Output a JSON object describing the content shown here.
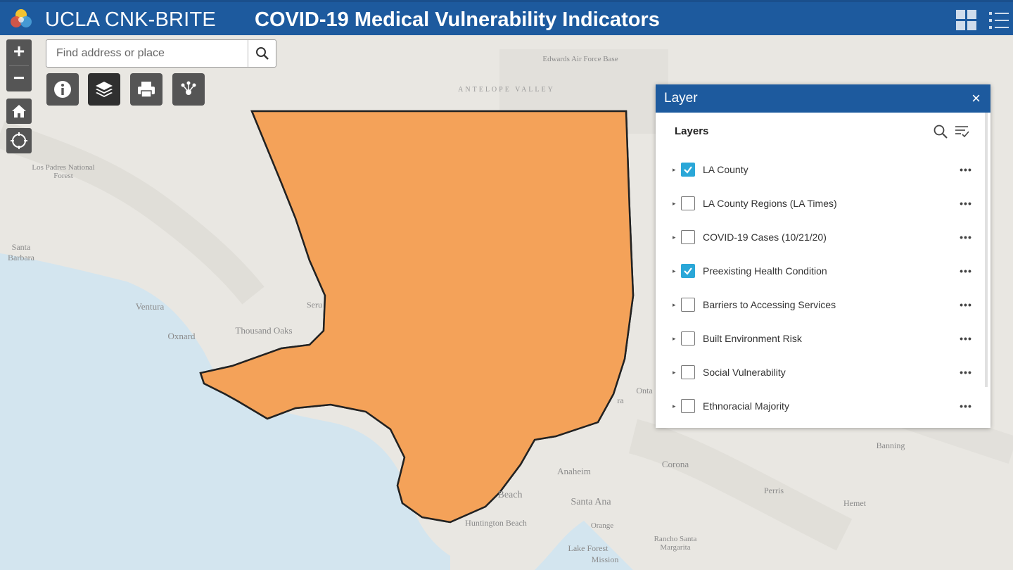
{
  "header": {
    "title": "UCLA CNK-BRITE",
    "subtitle": "COVID-19 Medical Vulnerability Indicators",
    "icons": [
      "logo-icon",
      "grid-icon",
      "list-icon"
    ]
  },
  "search": {
    "placeholder": "Find address or place"
  },
  "controls": {
    "zoom_in": "+",
    "zoom_out": "−",
    "tools": [
      "info-icon",
      "layers-icon",
      "print-icon",
      "share-icon"
    ]
  },
  "map_labels": {
    "edwards": "Edwards Air Force Base",
    "antelope": "ANTELOPE VALLEY",
    "los_padres": "Los Padres National Forest",
    "santa_barbara": "Santa Barbara",
    "ventura": "Ventura",
    "oxnard": "Oxnard",
    "thousand_oaks": "Thousand Oaks",
    "anaheim": "Anaheim",
    "santa_ana": "Santa Ana",
    "huntington": "Huntington Beach",
    "corona": "Corona",
    "perris": "Perris",
    "hemet": "Hemet",
    "banning": "Banning",
    "lake_forest": "Lake Forest",
    "mission": "Mission",
    "rancho": "Rancho Santa Margarita",
    "beach": "Beach",
    "orange": "Orange",
    "seru": "Seru",
    "onta": "Onta",
    "ra": "ra"
  },
  "panel": {
    "title": "Layer",
    "close": "×",
    "section_title": "Layers",
    "layers": [
      {
        "name": "LA County",
        "checked": true
      },
      {
        "name": "LA County Regions (LA Times)",
        "checked": false
      },
      {
        "name": "COVID-19 Cases (10/21/20)",
        "checked": false
      },
      {
        "name": "Preexisting Health Condition",
        "checked": true
      },
      {
        "name": "Barriers to Accessing Services",
        "checked": false
      },
      {
        "name": "Built Environment Risk",
        "checked": false
      },
      {
        "name": "Social Vulnerability",
        "checked": false
      },
      {
        "name": "Ethnoracial Majority",
        "checked": false
      }
    ],
    "more_label": "•••"
  },
  "colors": {
    "header": "#1d5a9e",
    "check": "#2aa7d8",
    "dark_orange": "#c8541f",
    "orange": "#f4a259",
    "light": "#fde6b9",
    "light_green": "#9fd06b",
    "dark_green": "#2e9c3f",
    "water": "#d3e5ef"
  }
}
